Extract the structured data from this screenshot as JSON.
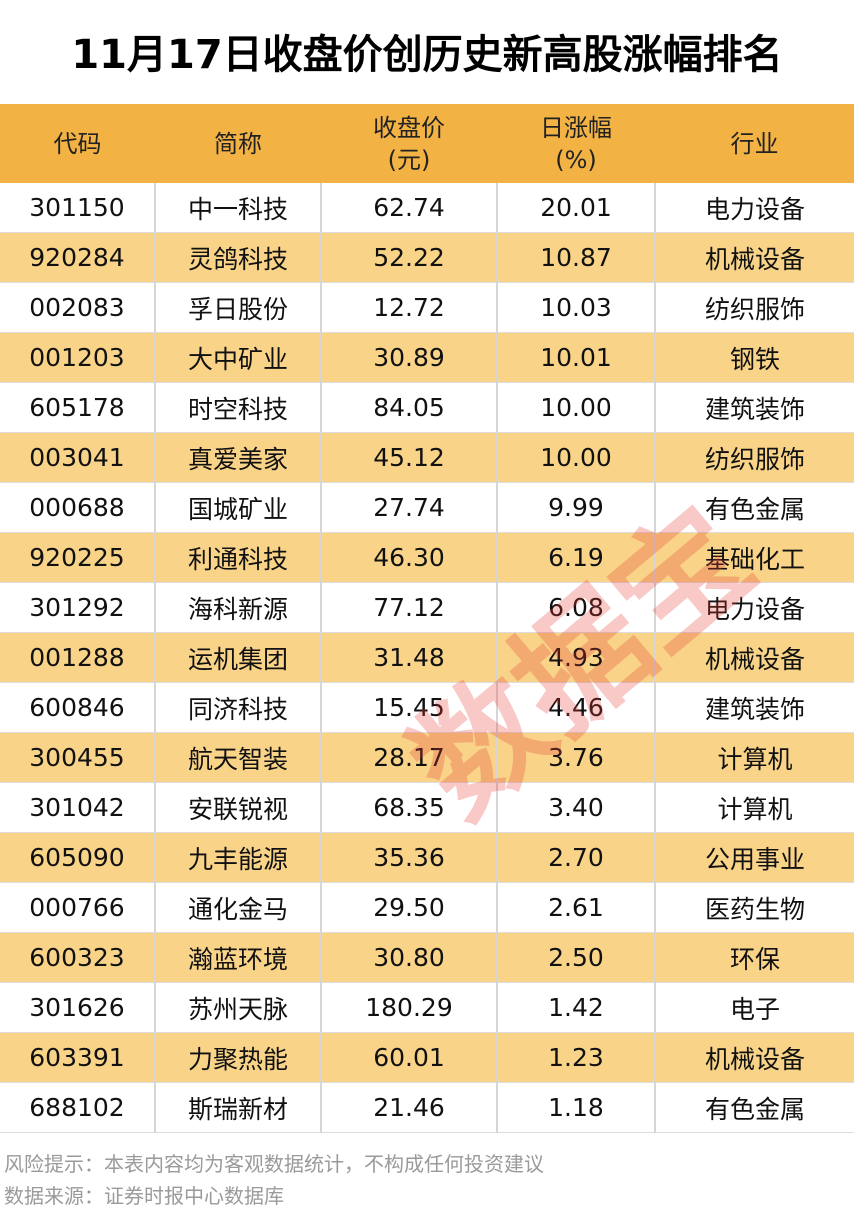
{
  "title": "11月17日收盘价创历史新高股涨幅排名",
  "headers": [
    "代码",
    "简称",
    "收盘价\n(元)",
    "日涨幅\n(%)",
    "行业"
  ],
  "rows": [
    [
      "301150",
      "中一科技",
      "62.74",
      "20.01",
      "电力设备"
    ],
    [
      "920284",
      "灵鸽科技",
      "52.22",
      "10.87",
      "机械设备"
    ],
    [
      "002083",
      "孚日股份",
      "12.72",
      "10.03",
      "纺织服饰"
    ],
    [
      "001203",
      "大中矿业",
      "30.89",
      "10.01",
      "钢铁"
    ],
    [
      "605178",
      "时空科技",
      "84.05",
      "10.00",
      "建筑装饰"
    ],
    [
      "003041",
      "真爱美家",
      "45.12",
      "10.00",
      "纺织服饰"
    ],
    [
      "000688",
      "国城矿业",
      "27.74",
      "9.99",
      "有色金属"
    ],
    [
      "920225",
      "利通科技",
      "46.30",
      "6.19",
      "基础化工"
    ],
    [
      "301292",
      "海科新源",
      "77.12",
      "6.08",
      "电力设备"
    ],
    [
      "001288",
      "运机集团",
      "31.48",
      "4.93",
      "机械设备"
    ],
    [
      "600846",
      "同济科技",
      "15.45",
      "4.46",
      "建筑装饰"
    ],
    [
      "300455",
      "航天智装",
      "28.17",
      "3.76",
      "计算机"
    ],
    [
      "301042",
      "安联锐视",
      "68.35",
      "3.40",
      "计算机"
    ],
    [
      "605090",
      "九丰能源",
      "35.36",
      "2.70",
      "公用事业"
    ],
    [
      "000766",
      "通化金马",
      "29.50",
      "2.61",
      "医药生物"
    ],
    [
      "600323",
      "瀚蓝环境",
      "30.80",
      "2.50",
      "环保"
    ],
    [
      "301626",
      "苏州天脉",
      "180.29",
      "1.42",
      "电子"
    ],
    [
      "603391",
      "力聚热能",
      "60.01",
      "1.23",
      "机械设备"
    ],
    [
      "688102",
      "斯瑞新材",
      "21.46",
      "1.18",
      "有色金属"
    ]
  ],
  "watermark": "数据宝",
  "footer": {
    "risk": "风险提示：本表内容均为客观数据统计，不构成任何投资建议",
    "source": "数据来源：证券时报中心数据库"
  },
  "colors": {
    "header": "#F3B244",
    "alt_row": "#F9D488",
    "watermark": "#E63C32"
  }
}
